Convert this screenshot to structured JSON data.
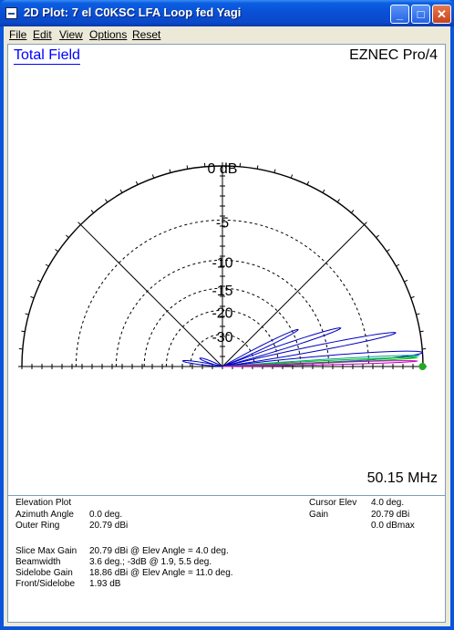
{
  "window": {
    "title": "2D Plot:  7 el C0KSC LFA Loop fed Yagi",
    "minimize": "_",
    "maximize": "□",
    "close": "✕"
  },
  "menu": [
    "File",
    "Edit",
    "View",
    "Options",
    "Reset"
  ],
  "plot": {
    "title": "Total Field",
    "brand": "EZNEC Pro/4",
    "frequency": "50.15 MHz",
    "ring_labels": [
      "0 dB",
      "-5",
      "-10",
      "-15",
      "-20",
      "-30"
    ],
    "cursor_elev_deg": 4.0
  },
  "info": {
    "plot_type": "Elevation Plot",
    "azimuth_label": "Azimuth Angle",
    "azimuth_value": "0.0 deg.",
    "outer_ring_label": "Outer Ring",
    "outer_ring_value": "20.79 dBi",
    "cursor_elev_label": "Cursor Elev",
    "cursor_elev_value": "4.0 deg.",
    "gain_label": "Gain",
    "gain_value": "20.79 dBi",
    "gain_dbmax": "0.0 dBmax",
    "slice_max_label": "Slice Max Gain",
    "slice_max_value": "20.79 dBi @ Elev Angle = 4.0 deg.",
    "beamwidth_label": "Beamwidth",
    "beamwidth_value": "3.6 deg.; -3dB @ 1.9, 5.5 deg.",
    "sidelobe_label": "Sidelobe Gain",
    "sidelobe_value": "18.86 dBi @ Elev Angle = 11.0 deg.",
    "fs_label": "Front/Sidelobe",
    "fs_value": "1.93 dB"
  },
  "colors": {
    "titlebar": "#0a4fd6",
    "plot_title": "#0000ff",
    "main_lobe": "#0000c0",
    "trace2": "#00a0a0",
    "trace3": "#00c000",
    "trace4": "#c000c0",
    "cursor": "#22aa22"
  }
}
